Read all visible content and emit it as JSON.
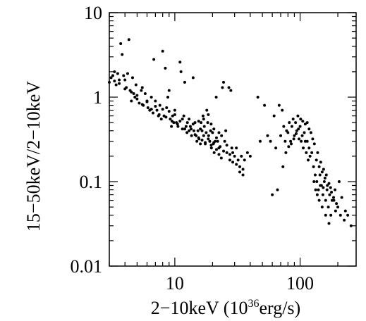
{
  "chart_data": {
    "type": "scatter",
    "xscale": "log",
    "yscale": "log",
    "xlim": [
      3,
      280
    ],
    "ylim": [
      0.01,
      10
    ],
    "grid": false,
    "x_ticks": [
      {
        "value": 10,
        "label": "10"
      },
      {
        "value": 100,
        "label": "100"
      }
    ],
    "y_ticks": [
      {
        "value": 0.01,
        "label": "0.01"
      },
      {
        "value": 0.1,
        "label": "0.1"
      },
      {
        "value": 1,
        "label": "1"
      },
      {
        "value": 10,
        "label": "10"
      }
    ],
    "xlabel": {
      "prefix": "2−10keV (10",
      "sup": "36",
      "suffix": "erg/s)"
    },
    "ylabel": "15−50keV/2−10keV",
    "points": [
      [
        3.0,
        1.5
      ],
      [
        3.2,
        1.8
      ],
      [
        3.3,
        2.0
      ],
      [
        3.4,
        1.4
      ],
      [
        3.5,
        1.9
      ],
      [
        3.6,
        1.6
      ],
      [
        3.7,
        4.3
      ],
      [
        3.8,
        3.2
      ],
      [
        3.9,
        1.8
      ],
      [
        4.0,
        1.6
      ],
      [
        4.1,
        1.3
      ],
      [
        4.2,
        1.9
      ],
      [
        4.3,
        4.8
      ],
      [
        4.4,
        1.2
      ],
      [
        4.5,
        0.9
      ],
      [
        4.6,
        1.7
      ],
      [
        4.7,
        1.1
      ],
      [
        4.8,
        1.0
      ],
      [
        4.9,
        1.4
      ],
      [
        5.0,
        0.95
      ],
      [
        5.2,
        0.85
      ],
      [
        5.4,
        1.2
      ],
      [
        5.5,
        1.3
      ],
      [
        5.6,
        0.8
      ],
      [
        5.8,
        1.1
      ],
      [
        6.0,
        0.9
      ],
      [
        6.1,
        0.75
      ],
      [
        6.3,
        0.7
      ],
      [
        6.5,
        1.0
      ],
      [
        6.7,
        0.65
      ],
      [
        6.8,
        2.8
      ],
      [
        7.0,
        0.9
      ],
      [
        7.2,
        0.7
      ],
      [
        7.4,
        0.6
      ],
      [
        7.6,
        0.8
      ],
      [
        7.8,
        0.55
      ],
      [
        8.0,
        3.5
      ],
      [
        8.2,
        0.6
      ],
      [
        8.4,
        2.2
      ],
      [
        8.6,
        0.75
      ],
      [
        8.8,
        1.0
      ],
      [
        9.0,
        1.2
      ],
      [
        9.2,
        0.55
      ],
      [
        9.4,
        0.45
      ],
      [
        9.6,
        0.6
      ],
      [
        9.8,
        0.5
      ],
      [
        10.0,
        0.7
      ],
      [
        10.3,
        0.5
      ],
      [
        10.6,
        0.45
      ],
      [
        11.0,
        2.6
      ],
      [
        11.2,
        2.0
      ],
      [
        11.5,
        0.55
      ],
      [
        11.8,
        0.6
      ],
      [
        12.0,
        1.5
      ],
      [
        12.3,
        0.45
      ],
      [
        12.6,
        0.5
      ],
      [
        13.0,
        0.4
      ],
      [
        13.3,
        0.45
      ],
      [
        13.6,
        0.35
      ],
      [
        14.0,
        1.7
      ],
      [
        14.2,
        0.4
      ],
      [
        14.5,
        0.5
      ],
      [
        14.8,
        0.35
      ],
      [
        15.0,
        0.3
      ],
      [
        15.3,
        0.4
      ],
      [
        15.6,
        0.32
      ],
      [
        16.0,
        0.28
      ],
      [
        16.2,
        0.5
      ],
      [
        16.5,
        0.4
      ],
      [
        16.8,
        0.6
      ],
      [
        17.0,
        0.35
      ],
      [
        17.2,
        0.45
      ],
      [
        17.5,
        0.28
      ],
      [
        17.8,
        0.38
      ],
      [
        18.0,
        0.7
      ],
      [
        18.3,
        0.5
      ],
      [
        18.6,
        0.35
      ],
      [
        19.0,
        0.3
      ],
      [
        19.3,
        0.4
      ],
      [
        19.6,
        0.25
      ],
      [
        20.0,
        0.38
      ],
      [
        20.3,
        0.28
      ],
      [
        20.6,
        0.22
      ],
      [
        21.0,
        0.3
      ],
      [
        21.4,
        1.0
      ],
      [
        22.0,
        0.3
      ],
      [
        22.5,
        0.25
      ],
      [
        23.0,
        0.26
      ],
      [
        23.6,
        0.35
      ],
      [
        24.0,
        1.3
      ],
      [
        24.5,
        1.5
      ],
      [
        25.0,
        0.3
      ],
      [
        25.5,
        0.4
      ],
      [
        26.0,
        0.22
      ],
      [
        27.0,
        1.3
      ],
      [
        27.5,
        0.18
      ],
      [
        28.0,
        1.2
      ],
      [
        28.5,
        0.25
      ],
      [
        29.0,
        0.22
      ],
      [
        30.0,
        0.2
      ],
      [
        31.0,
        0.25
      ],
      [
        32.0,
        0.18
      ],
      [
        33.0,
        0.15
      ],
      [
        34.0,
        0.2
      ],
      [
        35.0,
        0.14
      ],
      [
        36.0,
        0.18
      ],
      [
        38.0,
        0.22
      ],
      [
        40.0,
        0.2
      ],
      [
        16.0,
        0.42
      ],
      [
        17.0,
        0.55
      ],
      [
        18.5,
        0.62
      ],
      [
        19.5,
        0.48
      ],
      [
        20.5,
        0.42
      ],
      [
        21.5,
        0.33
      ],
      [
        22.5,
        0.38
      ],
      [
        15.5,
        0.52
      ],
      [
        14.0,
        0.48
      ],
      [
        13.0,
        0.55
      ],
      [
        12.0,
        0.42
      ],
      [
        11.0,
        0.52
      ],
      [
        10.0,
        0.62
      ],
      [
        9.0,
        0.68
      ],
      [
        8.0,
        0.72
      ],
      [
        7.0,
        0.78
      ],
      [
        6.0,
        0.88
      ],
      [
        5.0,
        1.05
      ],
      [
        4.5,
        1.15
      ],
      [
        4.0,
        1.25
      ],
      [
        3.6,
        1.45
      ],
      [
        3.3,
        1.55
      ],
      [
        3.1,
        1.7
      ],
      [
        5.5,
        0.82
      ],
      [
        6.5,
        0.72
      ],
      [
        7.5,
        0.62
      ],
      [
        8.5,
        0.58
      ],
      [
        9.5,
        0.52
      ],
      [
        10.5,
        0.48
      ],
      [
        11.5,
        0.42
      ],
      [
        12.5,
        0.38
      ],
      [
        13.5,
        0.42
      ],
      [
        14.5,
        0.36
      ],
      [
        15.5,
        0.33
      ],
      [
        16.5,
        0.31
      ],
      [
        17.5,
        0.29
      ],
      [
        18.5,
        0.32
      ],
      [
        19.5,
        0.27
      ],
      [
        20.5,
        0.29
      ],
      [
        21.5,
        0.24
      ],
      [
        22.5,
        0.21
      ],
      [
        23.5,
        0.19
      ],
      [
        24.5,
        0.23
      ],
      [
        26.0,
        0.27
      ],
      [
        27.5,
        0.21
      ],
      [
        29.0,
        0.17
      ],
      [
        31.0,
        0.16
      ],
      [
        33.0,
        0.13
      ],
      [
        35.0,
        0.12
      ],
      [
        46.0,
        1.0
      ],
      [
        48.0,
        0.3
      ],
      [
        52.0,
        0.8
      ],
      [
        55.0,
        0.35
      ],
      [
        58.0,
        0.3
      ],
      [
        60.0,
        0.07
      ],
      [
        62.0,
        0.6
      ],
      [
        64.0,
        0.25
      ],
      [
        66.0,
        0.08
      ],
      [
        68.0,
        0.8
      ],
      [
        70.0,
        0.35
      ],
      [
        72.0,
        0.7
      ],
      [
        74.0,
        0.45
      ],
      [
        76.0,
        0.3
      ],
      [
        78.0,
        0.4
      ],
      [
        80.0,
        0.38
      ],
      [
        82.0,
        0.5
      ],
      [
        84.0,
        0.3
      ],
      [
        86.0,
        0.45
      ],
      [
        88.0,
        0.55
      ],
      [
        90.0,
        0.35
      ],
      [
        92.0,
        0.5
      ],
      [
        94.0,
        0.4
      ],
      [
        96.0,
        0.6
      ],
      [
        98.0,
        0.32
      ],
      [
        100.0,
        0.45
      ],
      [
        102.0,
        0.3
      ],
      [
        104.0,
        0.35
      ],
      [
        106.0,
        0.25
      ],
      [
        108.0,
        0.38
      ],
      [
        110.0,
        0.3
      ],
      [
        112.0,
        0.22
      ],
      [
        114.0,
        0.3
      ],
      [
        116.0,
        0.18
      ],
      [
        118.0,
        0.25
      ],
      [
        120.0,
        0.2
      ],
      [
        124.0,
        0.22
      ],
      [
        128.0,
        0.15
      ],
      [
        132.0,
        0.12
      ],
      [
        136.0,
        0.1
      ],
      [
        140.0,
        0.08
      ],
      [
        144.0,
        0.12
      ],
      [
        148.0,
        0.09
      ],
      [
        152.0,
        0.07
      ],
      [
        156.0,
        0.1
      ],
      [
        160.0,
        0.06
      ],
      [
        164.0,
        0.08
      ],
      [
        168.0,
        0.05
      ],
      [
        172.0,
        0.07
      ],
      [
        176.0,
        0.04
      ],
      [
        180.0,
        0.06
      ],
      [
        190.0,
        0.08
      ],
      [
        200.0,
        0.05
      ],
      [
        210.0,
        0.04
      ],
      [
        225.0,
        0.035
      ],
      [
        240.0,
        0.04
      ],
      [
        255.0,
        0.03
      ],
      [
        135.0,
        0.18
      ],
      [
        142.0,
        0.15
      ],
      [
        150.0,
        0.13
      ],
      [
        158.0,
        0.11
      ],
      [
        165.0,
        0.09
      ],
      [
        175.0,
        0.085
      ],
      [
        185.0,
        0.065
      ],
      [
        195.0,
        0.055
      ],
      [
        130.0,
        0.28
      ],
      [
        138.0,
        0.22
      ],
      [
        146.0,
        0.17
      ],
      [
        154.0,
        0.14
      ],
      [
        162.0,
        0.12
      ],
      [
        170.0,
        0.095
      ],
      [
        178.0,
        0.075
      ],
      [
        186.0,
        0.06
      ],
      [
        192.0,
        0.045
      ],
      [
        205.0,
        0.1
      ],
      [
        215.0,
        0.065
      ],
      [
        230.0,
        0.045
      ],
      [
        170.0,
        0.032
      ],
      [
        160.0,
        0.04
      ],
      [
        150.0,
        0.05
      ],
      [
        142.0,
        0.06
      ],
      [
        137.0,
        0.07
      ],
      [
        133.0,
        0.08
      ],
      [
        129.0,
        0.1
      ],
      [
        145.0,
        0.09
      ],
      [
        153.0,
        0.085
      ],
      [
        126.0,
        0.32
      ],
      [
        122.0,
        0.38
      ],
      [
        118.0,
        0.42
      ],
      [
        114.0,
        0.5
      ],
      [
        110.0,
        0.48
      ],
      [
        105.0,
        0.52
      ],
      [
        101.0,
        0.55
      ],
      [
        97.0,
        0.42
      ],
      [
        93.0,
        0.37
      ],
      [
        89.0,
        0.32
      ],
      [
        85.0,
        0.28
      ],
      [
        81.0,
        0.26
      ],
      [
        77.0,
        0.22
      ],
      [
        73.0,
        0.15
      ]
    ]
  }
}
